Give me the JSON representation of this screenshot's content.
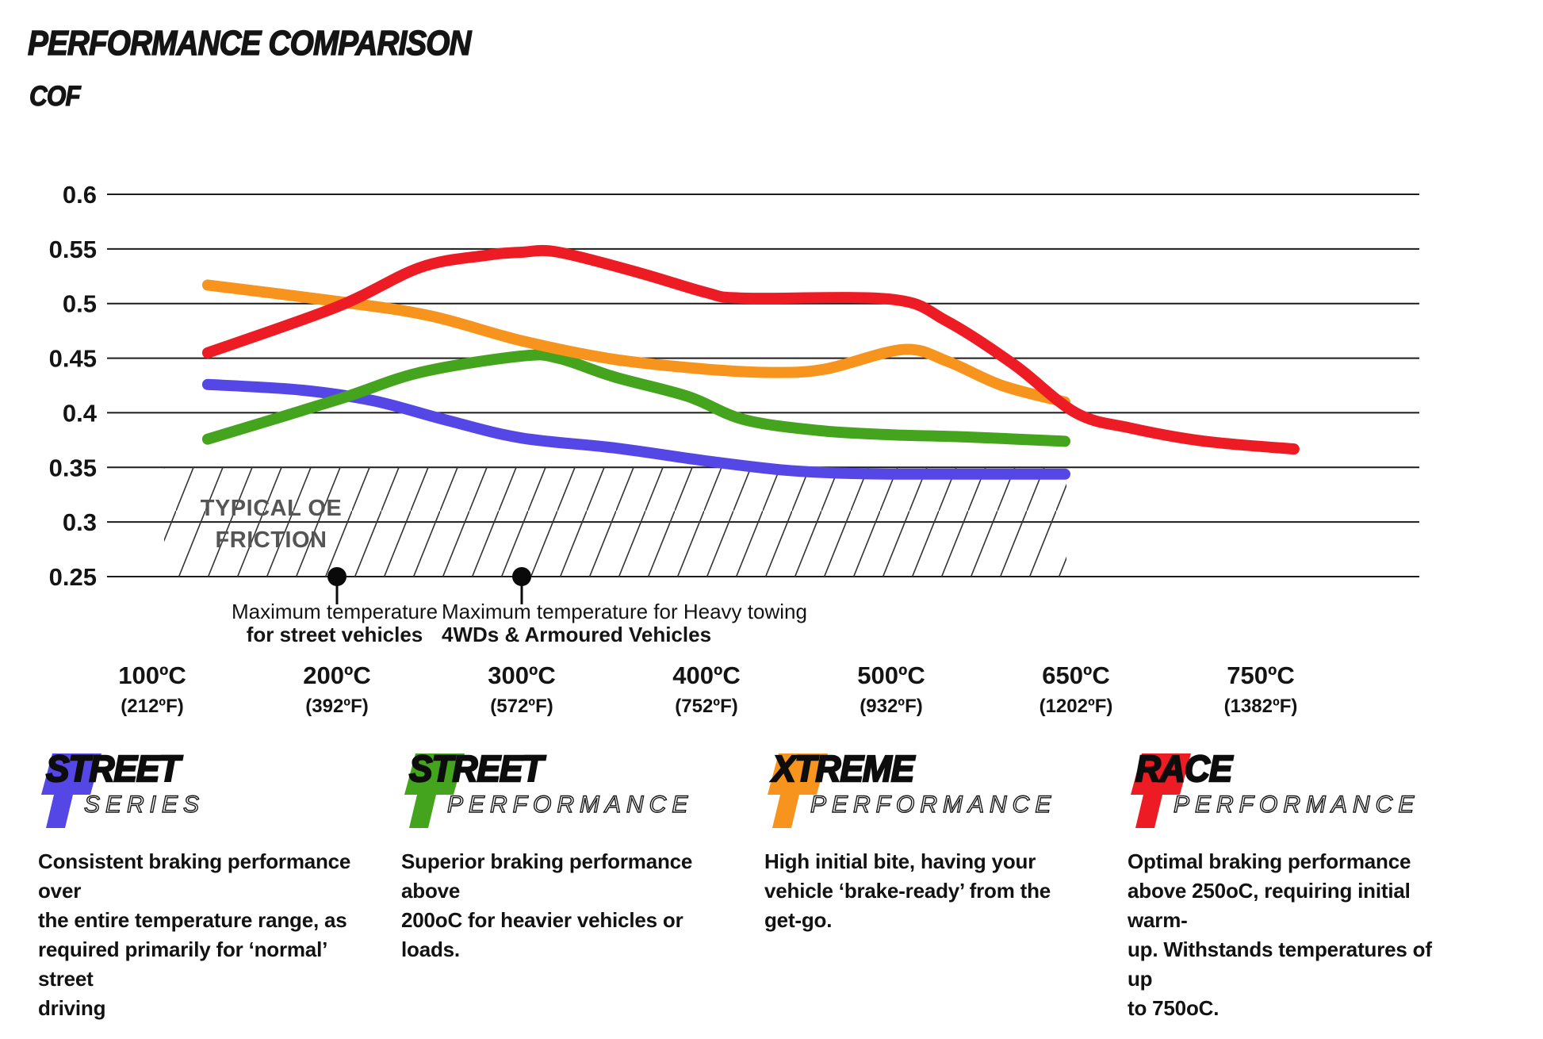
{
  "title": "PERFORMANCE COMPARISON",
  "chart_data": {
    "type": "line",
    "title": "PERFORMANCE COMPARISON",
    "ylabel": "COF",
    "ylim": [
      0.25,
      0.6
    ],
    "grid": "horizontal",
    "yticks": [
      "0.6",
      "0.55",
      "0.5",
      "0.45",
      "0.4",
      "0.35",
      "0.3",
      "0.25"
    ],
    "ytick_values": [
      0.6,
      0.55,
      0.5,
      0.45,
      0.4,
      0.35,
      0.3,
      0.25
    ],
    "x_tick_temps_c": [
      100,
      200,
      300,
      400,
      500,
      650,
      750
    ],
    "xticks": [
      {
        "c": "100ºC",
        "f": "(212ºF)"
      },
      {
        "c": "200ºC",
        "f": "(392ºF)"
      },
      {
        "c": "300ºC",
        "f": "(572ºF)"
      },
      {
        "c": "400ºC",
        "f": "(752ºF)"
      },
      {
        "c": "500ºC",
        "f": "(932ºF)"
      },
      {
        "c": "650ºC",
        "f": "(1202ºF)"
      },
      {
        "c": "750ºC",
        "f": "(1382ºF)"
      }
    ],
    "series": [
      {
        "name": "Street Series",
        "color": "#5547e6",
        "points": [
          [
            130,
            0.426
          ],
          [
            180,
            0.421
          ],
          [
            220,
            0.411
          ],
          [
            260,
            0.393
          ],
          [
            300,
            0.377
          ],
          [
            350,
            0.368
          ],
          [
            400,
            0.356
          ],
          [
            440,
            0.348
          ],
          [
            470,
            0.345
          ],
          [
            500,
            0.344
          ],
          [
            560,
            0.344
          ],
          [
            641,
            0.344
          ]
        ]
      },
      {
        "name": "Street Performance",
        "color": "#45a41d",
        "points": [
          [
            130,
            0.376
          ],
          [
            200,
            0.412
          ],
          [
            245,
            0.437
          ],
          [
            300,
            0.452
          ],
          [
            320,
            0.45
          ],
          [
            350,
            0.433
          ],
          [
            390,
            0.415
          ],
          [
            420,
            0.394
          ],
          [
            460,
            0.384
          ],
          [
            500,
            0.38
          ],
          [
            560,
            0.378
          ],
          [
            641,
            0.374
          ]
        ]
      },
      {
        "name": "Xtreme Performance",
        "color": "#f7941d",
        "points": [
          [
            130,
            0.517
          ],
          [
            200,
            0.502
          ],
          [
            250,
            0.489
          ],
          [
            300,
            0.466
          ],
          [
            350,
            0.449
          ],
          [
            400,
            0.44
          ],
          [
            435,
            0.437
          ],
          [
            464,
            0.44
          ],
          [
            510,
            0.458
          ],
          [
            546,
            0.447
          ],
          [
            590,
            0.425
          ],
          [
            641,
            0.41
          ]
        ]
      },
      {
        "name": "Race Performance",
        "color": "#ed1c24",
        "points": [
          [
            130,
            0.455
          ],
          [
            200,
            0.497
          ],
          [
            245,
            0.533
          ],
          [
            280,
            0.544
          ],
          [
            300,
            0.547
          ],
          [
            320,
            0.547
          ],
          [
            364,
            0.528
          ],
          [
            400,
            0.51
          ],
          [
            420,
            0.505
          ],
          [
            500,
            0.504
          ],
          [
            545,
            0.484
          ],
          [
            600,
            0.444
          ],
          [
            650,
            0.4
          ],
          [
            680,
            0.386
          ],
          [
            720,
            0.374
          ],
          [
            768,
            0.367
          ]
        ]
      }
    ],
    "oe_band": {
      "label_line1": "TYPICAL OE",
      "label_line2": "FRICTION",
      "cof_top": 0.35,
      "cof_bottom": 0.25,
      "temp_start_c": 110,
      "temp_end_c": 645
    },
    "annotations": [
      {
        "temp_c": 200,
        "cof": 0.25,
        "line1": "Maximum temperature",
        "line2": "for street vehicles"
      },
      {
        "temp_c": 300,
        "cof": 0.25,
        "line1": "Maximum temperature for Heavy towing",
        "line2": "4WDs & Armoured Vehicles"
      }
    ]
  },
  "legend": [
    {
      "word1": "STREET",
      "word2": "SERIES",
      "color": "#5547e6",
      "desc": "Consistent braking performance over\nthe entire temperature range, as\nrequired primarily for ‘normal’ street\ndriving"
    },
    {
      "word1": "STREET",
      "word2": "PERFORMANCE",
      "color": "#45a41d",
      "desc": "Superior braking performance above\n200oC for heavier vehicles or loads."
    },
    {
      "word1": "XTREME",
      "word2": "PERFORMANCE",
      "color": "#f7941d",
      "desc": "High initial bite, having your\nvehicle ‘brake-ready’ from the\nget-go."
    },
    {
      "word1": "RACE",
      "word2": "PERFORMANCE",
      "color": "#ed1c24",
      "desc": "Optimal braking performance\nabove 250oC, requiring initial warm-\nup. Withstands temperatures of up\nto 750oC."
    }
  ]
}
